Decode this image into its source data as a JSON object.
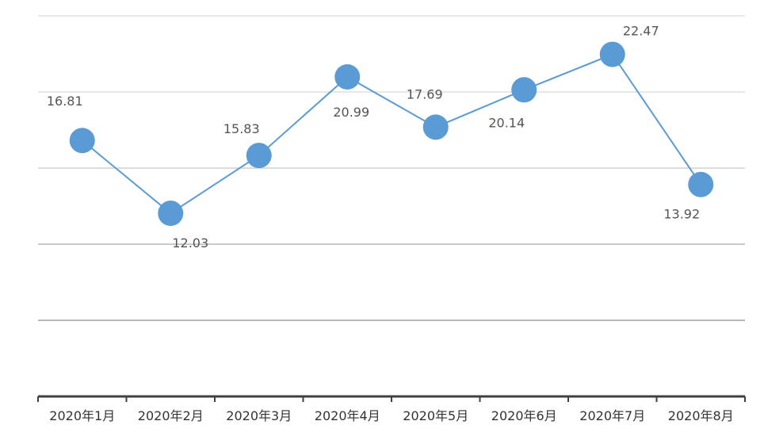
{
  "chart_data": {
    "type": "line",
    "categories": [
      "2020年1月",
      "2020年2月",
      "2020年3月",
      "2020年4月",
      "2020年5月",
      "2020年6月",
      "2020年7月",
      "2020年8月"
    ],
    "series": [
      {
        "values": [
          16.81,
          12.03,
          15.83,
          20.99,
          17.69,
          20.14,
          22.47,
          13.92
        ]
      }
    ],
    "data_labels": [
      "16.81",
      "12.03",
      "15.83",
      "20.99",
      "17.69",
      "20.14",
      "22.47",
      "13.92"
    ],
    "title": "",
    "xlabel": "",
    "ylabel": "",
    "ylim": [
      0,
      25
    ],
    "grid": true,
    "legend": "none",
    "colors": {
      "line": "#5b9bd5",
      "marker": "#5b9bd5",
      "grid": "#d9d9d9",
      "axis": "#404040"
    }
  }
}
